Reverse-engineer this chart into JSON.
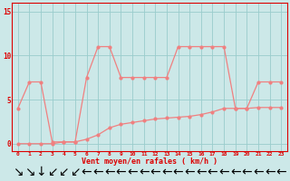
{
  "x": [
    0,
    1,
    2,
    3,
    4,
    5,
    6,
    7,
    8,
    9,
    10,
    11,
    12,
    13,
    14,
    15,
    16,
    17,
    18,
    19,
    20,
    21,
    22,
    23
  ],
  "rafales": [
    4,
    7,
    7,
    0.2,
    0.2,
    0.2,
    7.5,
    11,
    11,
    7.5,
    7.5,
    7.5,
    7.5,
    7.5,
    11,
    11,
    11,
    11,
    11,
    4,
    4,
    7,
    7,
    7
  ],
  "moyen": [
    0,
    0,
    0,
    0,
    0.2,
    0.2,
    0.5,
    1.0,
    1.8,
    2.2,
    2.4,
    2.6,
    2.8,
    2.9,
    3.0,
    3.1,
    3.3,
    3.6,
    4.0,
    4.0,
    4.0,
    4.1,
    4.1,
    4.1
  ],
  "line_color": "#f08080",
  "bg_color": "#cce8e8",
  "grid_color": "#99cccc",
  "axis_color": "#dd0000",
  "tick_color": "#dd0000",
  "arrow_color": "#dd0000",
  "spine_color": "#dd0000",
  "yticks": [
    0,
    5,
    10,
    15
  ],
  "xlim": [
    -0.5,
    23.5
  ],
  "ylim": [
    -0.8,
    16.0
  ],
  "xlabel": "Vent moyen/en rafales ( km/h )",
  "arrow_directions": [
    135,
    135,
    180,
    225,
    225,
    225,
    270,
    270,
    270,
    270,
    270,
    270,
    270,
    270,
    270,
    270,
    270,
    270,
    270,
    270,
    270,
    270,
    270,
    270
  ]
}
